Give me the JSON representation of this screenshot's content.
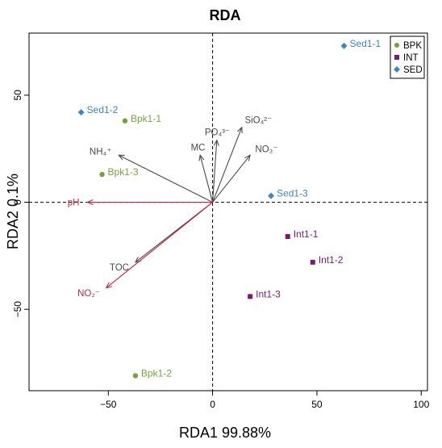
{
  "chart_data": {
    "type": "scatter",
    "title": "RDA",
    "xlabel": "RDA1  99.88%",
    "ylabel": "RDA2  0.1%",
    "xlim": [
      -88,
      103
    ],
    "ylim": [
      -88,
      79
    ],
    "x_ticks": [
      -50,
      0,
      50,
      100
    ],
    "y_ticks": [
      -50,
      0,
      50
    ],
    "x_tick_labels": [
      "−50",
      "0",
      "50",
      "100"
    ],
    "y_tick_labels": [
      "−50",
      "0",
      "50"
    ],
    "reference_lines": {
      "x": 0,
      "y": 0,
      "style": "dashed"
    },
    "legend": {
      "position": "top-right",
      "entries": [
        {
          "label": "BPK",
          "color": "#76a13c",
          "marker": "circle"
        },
        {
          "label": "INT",
          "color": "#7a1a6e",
          "marker": "square"
        },
        {
          "label": "SED",
          "color": "#3d86c6",
          "marker": "diamond"
        }
      ]
    },
    "series": [
      {
        "name": "BPK",
        "color": "#76a13c",
        "marker": "circle",
        "points": [
          {
            "label": "Bpk1-1",
            "x": -42,
            "y": 38
          },
          {
            "label": "Bpk1-2",
            "x": -37,
            "y": -81
          },
          {
            "label": "Bpk1-3",
            "x": -53,
            "y": 13
          }
        ]
      },
      {
        "name": "INT",
        "color": "#7a1a6e",
        "marker": "square",
        "points": [
          {
            "label": "Int1-1",
            "x": 36,
            "y": -16
          },
          {
            "label": "Int1-2",
            "x": 48,
            "y": -28
          },
          {
            "label": "Int1-3",
            "x": 18,
            "y": -44
          }
        ]
      },
      {
        "name": "SED",
        "color": "#3d86c6",
        "marker": "diamond",
        "points": [
          {
            "label": "Sed1-1",
            "x": 63,
            "y": 73
          },
          {
            "label": "Sed1-2",
            "x": -63,
            "y": 42
          },
          {
            "label": "Sed1-3",
            "x": 28,
            "y": 3
          }
        ]
      }
    ],
    "vectors": [
      {
        "label": "NH₄⁺",
        "x": -45,
        "y": 22,
        "color": "#4a4a4a"
      },
      {
        "label": "MC",
        "x": -6,
        "y": 22,
        "color": "#4a4a4a"
      },
      {
        "label": "PO₄³⁻",
        "x": 2,
        "y": 29,
        "color": "#4a4a4a"
      },
      {
        "label": "SiO₄²⁻",
        "x": 14,
        "y": 35,
        "color": "#4a4a4a"
      },
      {
        "label": "NO₃⁻",
        "x": 18,
        "y": 22,
        "color": "#4a4a4a"
      },
      {
        "label": "TOC",
        "x": -37,
        "y": -28,
        "color": "#4a4a4a"
      },
      {
        "label": "pH",
        "x": -60,
        "y": 0,
        "color": "#c0263d"
      },
      {
        "label": "NO₂⁻",
        "x": -51,
        "y": -40,
        "color": "#c0263d"
      }
    ]
  }
}
